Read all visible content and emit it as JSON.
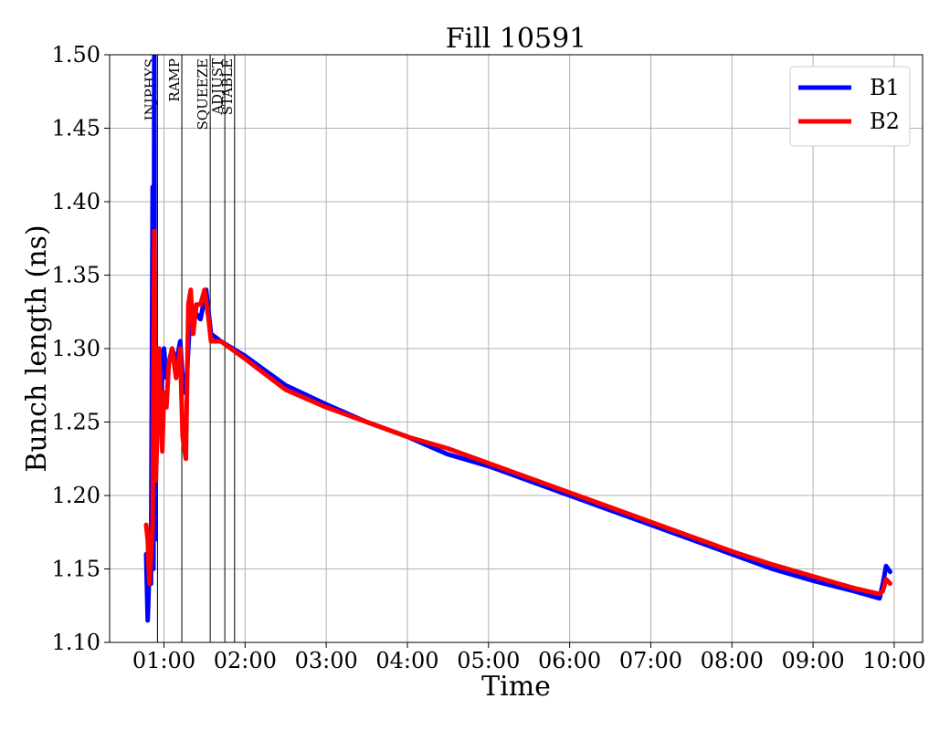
{
  "chart_data": {
    "type": "line",
    "title": "Fill 10591",
    "xlabel": "Time",
    "ylabel": "Bunch length (ns)",
    "x_unit": "hours",
    "xlim": [
      0.33,
      10.35
    ],
    "ylim": [
      1.1,
      1.5
    ],
    "grid": true,
    "legend_position": "top-right",
    "x_ticks": [
      {
        "value": 1,
        "label": "01:00"
      },
      {
        "value": 2,
        "label": "02:00"
      },
      {
        "value": 3,
        "label": "03:00"
      },
      {
        "value": 4,
        "label": "04:00"
      },
      {
        "value": 5,
        "label": "05:00"
      },
      {
        "value": 6,
        "label": "06:00"
      },
      {
        "value": 7,
        "label": "07:00"
      },
      {
        "value": 8,
        "label": "08:00"
      },
      {
        "value": 9,
        "label": "09:00"
      },
      {
        "value": 10,
        "label": "10:00"
      }
    ],
    "y_ticks": [
      {
        "value": 1.1,
        "label": "1.10"
      },
      {
        "value": 1.15,
        "label": "1.15"
      },
      {
        "value": 1.2,
        "label": "1.20"
      },
      {
        "value": 1.25,
        "label": "1.25"
      },
      {
        "value": 1.3,
        "label": "1.30"
      },
      {
        "value": 1.35,
        "label": "1.35"
      },
      {
        "value": 1.4,
        "label": "1.40"
      },
      {
        "value": 1.45,
        "label": "1.45"
      },
      {
        "value": 1.5,
        "label": "1.50"
      }
    ],
    "phases": [
      {
        "label": "INJPHYS",
        "x": 0.92
      },
      {
        "label": "RAMP",
        "x": 1.22
      },
      {
        "label": "SQUEEZE",
        "x": 1.57
      },
      {
        "label": "ADJUST",
        "x": 1.75
      },
      {
        "label": "STABLE",
        "x": 1.87
      }
    ],
    "series": [
      {
        "name": "B1",
        "color": "#0000ff",
        "x": [
          0.78,
          0.8,
          0.82,
          0.84,
          0.86,
          0.87,
          0.88,
          0.89,
          0.9,
          0.91,
          0.92,
          0.94,
          0.96,
          0.98,
          1.0,
          1.03,
          1.06,
          1.1,
          1.15,
          1.2,
          1.24,
          1.28,
          1.32,
          1.38,
          1.45,
          1.52,
          1.58,
          1.7,
          2.0,
          2.5,
          3.0,
          3.5,
          4.0,
          4.5,
          5.0,
          5.5,
          6.0,
          6.5,
          7.0,
          7.5,
          8.0,
          8.5,
          9.0,
          9.5,
          9.82,
          9.86,
          9.9,
          9.95
        ],
        "values": [
          1.16,
          1.115,
          1.15,
          1.14,
          1.41,
          1.15,
          1.5,
          1.17,
          1.28,
          1.23,
          1.26,
          1.3,
          1.25,
          1.29,
          1.3,
          1.28,
          1.29,
          1.3,
          1.29,
          1.305,
          1.27,
          1.28,
          1.32,
          1.325,
          1.32,
          1.34,
          1.31,
          1.305,
          1.295,
          1.275,
          1.262,
          1.25,
          1.24,
          1.228,
          1.22,
          1.21,
          1.2,
          1.19,
          1.18,
          1.17,
          1.16,
          1.15,
          1.142,
          1.135,
          1.13,
          1.14,
          1.152,
          1.148
        ]
      },
      {
        "name": "B2",
        "color": "#ff0000",
        "x": [
          0.78,
          0.8,
          0.82,
          0.84,
          0.86,
          0.88,
          0.9,
          0.92,
          0.94,
          0.96,
          0.98,
          1.0,
          1.03,
          1.06,
          1.1,
          1.15,
          1.2,
          1.23,
          1.27,
          1.3,
          1.33,
          1.36,
          1.4,
          1.45,
          1.5,
          1.55,
          1.58,
          1.7,
          2.0,
          2.5,
          3.0,
          3.5,
          4.0,
          4.5,
          5.0,
          5.5,
          6.0,
          6.5,
          7.0,
          7.5,
          8.0,
          8.5,
          9.0,
          9.5,
          9.82,
          9.86,
          9.9,
          9.95
        ],
        "values": [
          1.18,
          1.17,
          1.14,
          1.16,
          1.18,
          1.38,
          1.21,
          1.25,
          1.3,
          1.26,
          1.23,
          1.27,
          1.26,
          1.29,
          1.3,
          1.28,
          1.3,
          1.24,
          1.225,
          1.33,
          1.34,
          1.31,
          1.33,
          1.33,
          1.34,
          1.32,
          1.305,
          1.305,
          1.293,
          1.272,
          1.26,
          1.25,
          1.24,
          1.232,
          1.222,
          1.212,
          1.202,
          1.192,
          1.182,
          1.172,
          1.162,
          1.153,
          1.145,
          1.137,
          1.133,
          1.135,
          1.143,
          1.14
        ]
      }
    ]
  }
}
